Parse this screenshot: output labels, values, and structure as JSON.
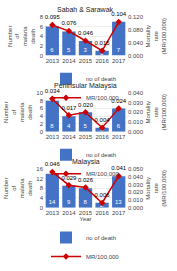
{
  "chart_data": [
    {
      "type": "bar",
      "title": "Sabah & Sarawak",
      "categories": [
        "2013",
        "2014",
        "2015",
        "2016",
        "2017"
      ],
      "ylabel": "Number\nof\nmalaria\ndeath",
      "y2label": "Mortality\nrate\n(MR/100,000)",
      "series": [
        {
          "name": "no of death",
          "type": "bar",
          "color": "#4472C4",
          "values": [
            6,
            5,
            3,
            1,
            7
          ]
        },
        {
          "name": "MR/100,000",
          "type": "line",
          "axis": "y2",
          "color": "#CC0000",
          "marker": "diamond",
          "values": [
            0.095,
            0.076,
            0.046,
            0.015,
            0.104
          ],
          "value_labels": [
            "0.095",
            "0.076",
            "0.046",
            "0.015",
            "0.104"
          ]
        }
      ],
      "ylim": [
        0,
        8
      ],
      "yticks": [
        0,
        2,
        4,
        6,
        8
      ],
      "y2lim": [
        0,
        0.12
      ],
      "y2ticks": [
        {
          "value": 0,
          "label": "0.000"
        },
        {
          "value": 0.04,
          "label": "0.040"
        },
        {
          "value": 0.08,
          "label": "0.080"
        },
        {
          "value": 0.12,
          "label": "0.120"
        }
      ],
      "grid": true,
      "legend": "bottom",
      "data_labels": true
    },
    {
      "type": "bar",
      "title": "Peninsular Malaysia",
      "categories": [
        "2013",
        "2014",
        "2015",
        "2016",
        "2017"
      ],
      "ylabel": "Number\nof\nmalaria\ndeath",
      "y2label": "Mortality\nrate\n(MR/100,000)",
      "series": [
        {
          "name": "no of death",
          "type": "bar",
          "color": "#4472C4",
          "values": [
            8,
            4,
            5,
            1,
            6
          ]
        },
        {
          "name": "MR/100,000",
          "type": "line",
          "axis": "y2",
          "color": "#CC0000",
          "marker": "diamond",
          "values": [
            0.034,
            0.017,
            0.02,
            0.004,
            0.024
          ],
          "value_labels": [
            "0.034",
            "0.017",
            "0.020",
            "0.004",
            "0.024"
          ]
        }
      ],
      "ylim": [
        0,
        10
      ],
      "yticks": [
        0,
        2,
        4,
        6,
        8,
        10
      ],
      "y2lim": [
        0,
        0.04
      ],
      "y2ticks": [
        {
          "value": 0,
          "label": "0.000"
        },
        {
          "value": 0.01,
          "label": "0.010"
        },
        {
          "value": 0.02,
          "label": "0.020"
        },
        {
          "value": 0.03,
          "label": "0.030"
        },
        {
          "value": 0.04,
          "label": "0.040"
        }
      ],
      "grid": true,
      "legend": "bottom",
      "data_labels": true
    },
    {
      "type": "bar",
      "title": "Malaysia",
      "categories": [
        "2013",
        "2014",
        "2015",
        "2016",
        "2017"
      ],
      "xlabel": "Year",
      "ylabel": "Number\nof\nmalaria\ndeath",
      "y2label": "Mortality\nrate\n(MR/100,000)",
      "series": [
        {
          "name": "no of death",
          "type": "bar",
          "color": "#4472C4",
          "values": [
            14,
            9,
            8,
            2,
            13
          ]
        },
        {
          "name": "MR/100,000",
          "type": "line",
          "axis": "y2",
          "color": "#CC0000",
          "marker": "diamond",
          "values": [
            0.046,
            0.029,
            0.026,
            0.006,
            0.041
          ],
          "value_labels": [
            "0.046",
            "0.029",
            "0.026",
            "0.006",
            "0.041"
          ]
        }
      ],
      "ylim": [
        0,
        16
      ],
      "yticks": [
        0,
        4,
        8,
        12,
        16
      ],
      "y2lim": [
        0,
        0.05
      ],
      "y2ticks": [
        {
          "value": 0,
          "label": "0.000"
        },
        {
          "value": 0.01,
          "label": "0.010"
        },
        {
          "value": 0.02,
          "label": "0.020"
        },
        {
          "value": 0.03,
          "label": "0.030"
        },
        {
          "value": 0.04,
          "label": "0.040"
        },
        {
          "value": 0.05,
          "label": "0.050"
        }
      ],
      "grid": true,
      "legend": "bottom",
      "data_labels": true
    }
  ]
}
